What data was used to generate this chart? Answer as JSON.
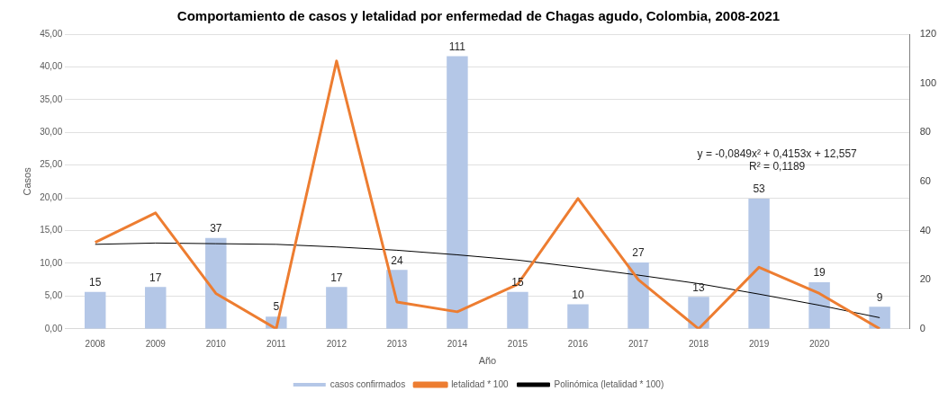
{
  "chart_data": {
    "type": "bar",
    "title": "Comportamiento de casos y letalidad por enfermedad de Chagas agudo, Colombia, 2008-2021",
    "xlabel": "Año",
    "ylabel": "Casos",
    "categories": [
      "2008",
      "2009",
      "2010",
      "2011",
      "2012",
      "2013",
      "2014",
      "2015",
      "2016",
      "2017",
      "2018",
      "2019",
      "2020",
      null
    ],
    "series": [
      {
        "name": "casos confirmados",
        "axis": "y2",
        "color": "#b4c7e7",
        "values": [
          15,
          17,
          37,
          5,
          17,
          24,
          111,
          15,
          10,
          27,
          13,
          53,
          19,
          9
        ],
        "value_labels": [
          "15",
          "17",
          "37",
          "5",
          "17",
          "24",
          "111",
          "15",
          "10",
          "27",
          "13",
          "53",
          "19",
          "9"
        ]
      },
      {
        "name": "letalidad * 100",
        "type": "line",
        "color": "#ed7d31",
        "values": [
          13.2,
          17.7,
          5.4,
          0,
          40.9,
          4.1,
          2.6,
          6.8,
          19.9,
          7.5,
          0,
          9.4,
          5.4,
          0
        ]
      },
      {
        "name": "Polinómica (letalidad * 100)",
        "type": "line",
        "color": "#000000",
        "values": [
          12.9,
          13.1,
          13.0,
          12.9,
          12.5,
          12.0,
          11.3,
          10.5,
          9.4,
          8.2,
          6.9,
          5.3,
          3.6,
          1.7
        ]
      }
    ],
    "ylim": [
      0,
      45
    ],
    "yticks": [
      {
        "value": 0,
        "label": "0,00"
      },
      {
        "value": 5,
        "label": "5,00"
      },
      {
        "value": 10,
        "label": "10,00"
      },
      {
        "value": 15,
        "label": "15,00"
      },
      {
        "value": 20,
        "label": "20,00"
      },
      {
        "value": 25,
        "label": "25,00"
      },
      {
        "value": 30,
        "label": "30,00"
      },
      {
        "value": 35,
        "label": "35,00"
      },
      {
        "value": 40,
        "label": "40,00"
      },
      {
        "value": 45,
        "label": "45,00"
      }
    ],
    "y2lim": [
      0,
      120
    ],
    "y2ticks": [
      0,
      20,
      40,
      60,
      80,
      100,
      120
    ],
    "annotations": [
      "y = -0,0849x² + 0,4153x + 12,557",
      "R² = 0,1189"
    ],
    "grid": "y",
    "legend": "bottom",
    "marker": "none"
  }
}
